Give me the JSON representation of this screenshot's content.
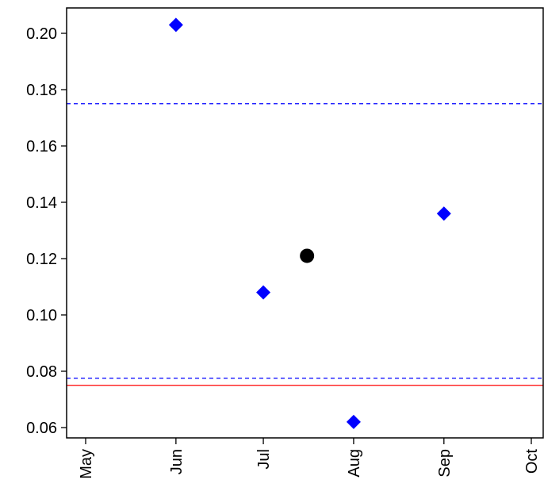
{
  "chart_data": {
    "type": "scatter",
    "x_axis": {
      "type": "date",
      "range": [
        "2019-05-01",
        "2019-10-01"
      ],
      "tick_labels": [
        "May",
        "Jun",
        "Jul",
        "Aug",
        "Sep",
        "Oct"
      ],
      "tick_values": [
        "2019-05-01",
        "2019-06-01",
        "2019-07-01",
        "2019-08-01",
        "2019-09-01",
        "2019-10-01"
      ],
      "label_rotation": "vertical"
    },
    "y_axis": {
      "range": [
        0.055,
        0.208
      ],
      "tick_values": [
        0.06,
        0.08,
        0.1,
        0.12,
        0.14,
        0.16,
        0.18,
        0.2
      ],
      "tick_labels": [
        "0.06",
        "0.08",
        "0.10",
        "0.12",
        "0.14",
        "0.16",
        "0.18",
        "0.20"
      ]
    },
    "grid": false,
    "series": [
      {
        "marker": "diamond",
        "color": "#0000ff",
        "points": [
          {
            "x": "2019-06-01",
            "y": 0.203
          },
          {
            "x": "2019-07-01",
            "y": 0.108
          },
          {
            "x": "2019-08-01",
            "y": 0.062
          },
          {
            "x": "2019-09-01",
            "y": 0.136
          }
        ]
      },
      {
        "marker": "circle",
        "color": "#000000",
        "points": [
          {
            "x": "2019-07-16",
            "y": 0.121
          }
        ]
      }
    ],
    "reference_lines": [
      {
        "y": 0.175,
        "style": "dashed",
        "color": "#0000ff"
      },
      {
        "y": 0.0775,
        "style": "dashed",
        "color": "#0000ff"
      },
      {
        "y": 0.075,
        "style": "solid",
        "color": "#ff0000"
      }
    ]
  }
}
